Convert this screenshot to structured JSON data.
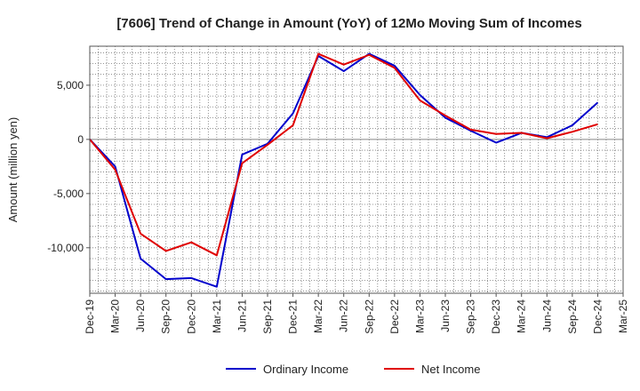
{
  "chart_data": {
    "type": "line",
    "title": "[7606]  Trend of Change in Amount (YoY) of 12Mo Moving Sum of Incomes",
    "xlabel": "",
    "ylabel": "Amount (million yen)",
    "categories": [
      "Dec-19",
      "Mar-20",
      "Jun-20",
      "Sep-20",
      "Dec-20",
      "Mar-21",
      "Jun-21",
      "Sep-21",
      "Dec-21",
      "Mar-22",
      "Jun-22",
      "Sep-22",
      "Dec-22",
      "Mar-23",
      "Jun-23",
      "Sep-23",
      "Dec-23",
      "Mar-24",
      "Jun-24",
      "Sep-24",
      "Dec-24",
      "Mar-25"
    ],
    "ylim": [
      -14200,
      8600
    ],
    "yticks": [
      5000,
      0,
      -5000,
      -10000
    ],
    "ytick_labels": [
      "5,000",
      "0",
      "-5,000",
      "-10,000"
    ],
    "grid": true,
    "legend_position": "bottom",
    "series": [
      {
        "name": "Ordinary Income",
        "color": "#0000cc",
        "values": [
          0,
          -2500,
          -11000,
          -12900,
          -12800,
          -13600,
          -1400,
          -400,
          2400,
          7700,
          6300,
          7900,
          6800,
          4100,
          2000,
          800,
          -300,
          600,
          200,
          1300,
          3400,
          null
        ]
      },
      {
        "name": "Net Income",
        "color": "#e00000",
        "values": [
          0,
          -2800,
          -8700,
          -10300,
          -9500,
          -10700,
          -2200,
          -500,
          1300,
          7900,
          6900,
          7800,
          6600,
          3600,
          2200,
          900,
          500,
          600,
          100,
          700,
          1400,
          null
        ]
      }
    ]
  }
}
